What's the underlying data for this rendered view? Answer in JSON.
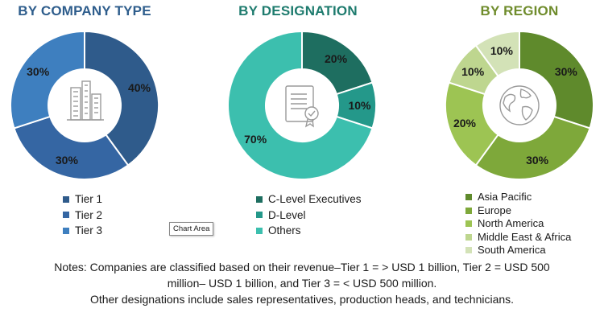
{
  "chart_data": [
    {
      "type": "pie",
      "title": "BY COMPANY TYPE",
      "categories": [
        "Tier  1",
        "Tier  2",
        "Tier  3"
      ],
      "values": [
        40,
        30,
        30
      ],
      "labels": [
        "40%",
        "30%",
        "30%"
      ],
      "colors": [
        "#2F5B8B",
        "#3566A3",
        "#3E7FBF"
      ],
      "legend": "bottom",
      "center_icon": "buildings-icon"
    },
    {
      "type": "pie",
      "title": "BY DESIGNATION",
      "categories": [
        "C-Level Executives",
        "D-Level",
        "Others"
      ],
      "values": [
        20,
        10,
        70
      ],
      "labels": [
        "20%",
        "10%",
        "70%"
      ],
      "colors": [
        "#1E6E60",
        "#24988A",
        "#3CBFAE"
      ],
      "legend": "bottom",
      "center_icon": "certificate-icon"
    },
    {
      "type": "pie",
      "title": "BY REGION",
      "categories": [
        "Asia Pacific",
        "Europe",
        "North America",
        "Middle East & Africa",
        "South America"
      ],
      "values": [
        30,
        30,
        20,
        10,
        10
      ],
      "labels": [
        "30%",
        "30%",
        "20%",
        "10%",
        "10%"
      ],
      "colors": [
        "#5F8A2C",
        "#7EA83A",
        "#9DC453",
        "#BED68F",
        "#D3E2B7"
      ],
      "legend": "bottom",
      "center_icon": "globe-icon"
    }
  ],
  "tooltip": {
    "chart_area": "Chart Area"
  },
  "notes": {
    "line1": "Notes: Companies are classified based on their revenue–Tier 1 = > USD 1 billion, Tier 2 = USD 500",
    "line2": "million– USD 1 billion, and Tier 3 = < USD 500 million.",
    "line3": "Other designations include sales representatives, production heads, and technicians."
  }
}
